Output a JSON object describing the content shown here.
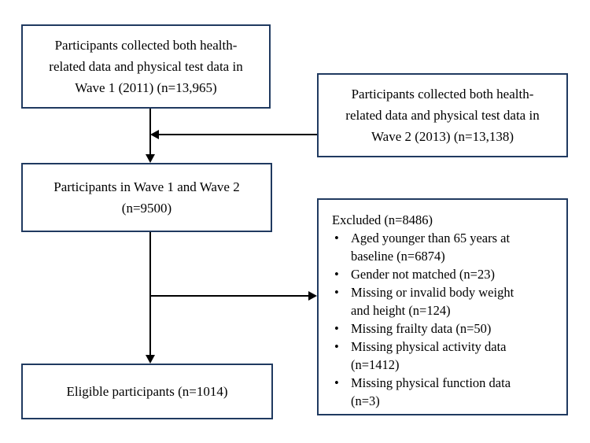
{
  "colors": {
    "box_border": "#203a60",
    "connector": "#000000",
    "background": "#ffffff",
    "text": "#000000"
  },
  "boxes": {
    "wave1": {
      "lines": [
        "Participants collected both health-",
        "related data and physical test data in",
        "Wave 1 (2011) (n=13,965)"
      ]
    },
    "wave2": {
      "lines": [
        "Participants collected both health-",
        "related data and physical test data in",
        "Wave 2 (2013) (n=13,138)"
      ]
    },
    "merged": {
      "lines": [
        "Participants in Wave 1 and Wave 2",
        "(n=9500)"
      ]
    },
    "excluded": {
      "title": "Excluded (n=8486)",
      "bullet_char": "•",
      "items": [
        {
          "lines": [
            "Aged younger than 65 years at",
            "baseline (n=6874)"
          ]
        },
        {
          "lines": [
            "Gender not matched (n=23)"
          ]
        },
        {
          "lines": [
            "Missing or invalid body weight",
            "and height (n=124)"
          ]
        },
        {
          "lines": [
            "Missing frailty data (n=50)"
          ]
        },
        {
          "lines": [
            "Missing physical activity data",
            "(n=1412)"
          ]
        },
        {
          "lines": [
            "Missing physical function data",
            "(n=3)"
          ]
        }
      ]
    },
    "eligible": {
      "lines": [
        "Eligible participants (n=1014)"
      ]
    }
  }
}
